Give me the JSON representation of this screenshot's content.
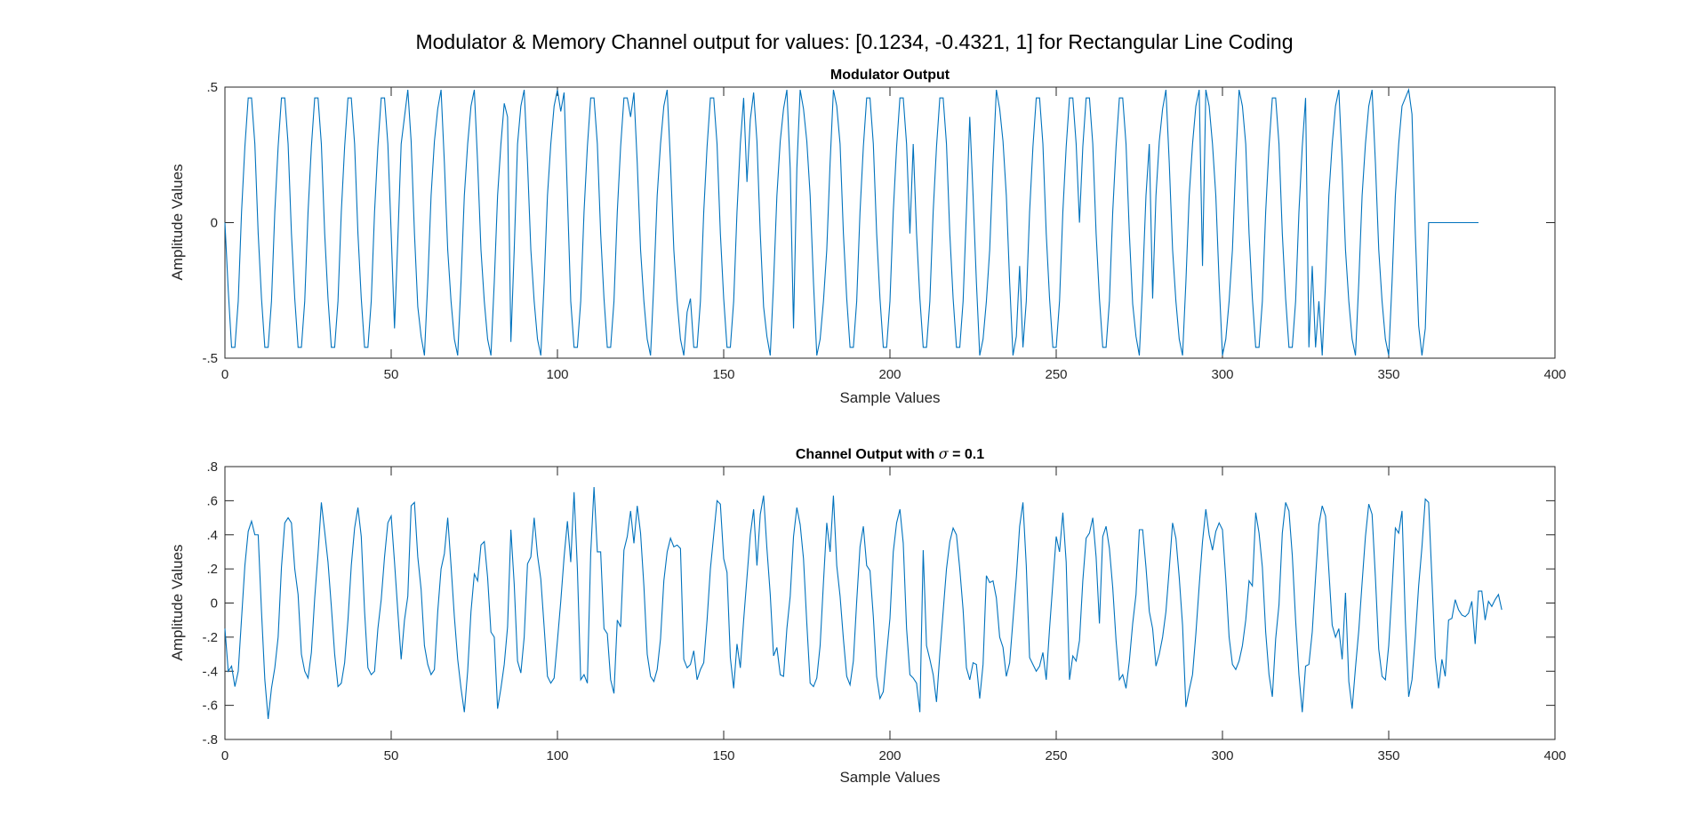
{
  "figure": {
    "title": "Modulator & Memory Channel output for values: [0.1234, -0.4321, 1] for Rectangular Line Coding"
  },
  "colors": {
    "line": "#0072BD",
    "axes": "#262626",
    "background": "#ffffff"
  },
  "chart_data": [
    {
      "type": "line",
      "title": "Modulator Output",
      "xlabel": "Sample Values",
      "ylabel": "Amplitude Values",
      "xlim": [
        0,
        400
      ],
      "ylim": [
        -0.5,
        0.5
      ],
      "xticks": [
        0,
        50,
        100,
        150,
        200,
        250,
        300,
        350,
        400
      ],
      "yticks": [
        -0.5,
        0,
        0.5
      ],
      "grid": false,
      "series": [
        {
          "x_start": 0,
          "x_step": 1,
          "values": [
            0,
            -0.25,
            -0.46,
            -0.46,
            -0.29,
            0.04,
            0.28,
            0.46,
            0.46,
            0.29,
            -0.04,
            -0.28,
            -0.46,
            -0.46,
            -0.29,
            0.04,
            0.28,
            0.46,
            0.46,
            0.29,
            -0.04,
            -0.28,
            -0.46,
            -0.46,
            -0.29,
            0.04,
            0.28,
            0.46,
            0.46,
            0.29,
            -0.04,
            -0.28,
            -0.46,
            -0.46,
            -0.29,
            0.04,
            0.28,
            0.46,
            0.46,
            0.29,
            -0.04,
            -0.28,
            -0.46,
            -0.46,
            -0.29,
            0.04,
            0.28,
            0.46,
            0.46,
            0.29,
            -0.04,
            -0.39,
            -0.06,
            0.29,
            0.39,
            0.49,
            0.3,
            -0.04,
            -0.31,
            -0.42,
            -0.49,
            -0.22,
            0.1,
            0.3,
            0.42,
            0.49,
            0.22,
            -0.1,
            -0.29,
            -0.43,
            -0.49,
            -0.22,
            0.1,
            0.29,
            0.43,
            0.49,
            0.22,
            -0.1,
            -0.29,
            -0.43,
            -0.49,
            -0.22,
            0.1,
            0.29,
            0.44,
            0.39,
            -0.44,
            -0.1,
            0.29,
            0.43,
            0.49,
            0.22,
            -0.1,
            -0.29,
            -0.43,
            -0.49,
            -0.22,
            0.1,
            0.29,
            0.43,
            0.49,
            0.41,
            0.48,
            0.1,
            -0.29,
            -0.46,
            -0.46,
            -0.29,
            0.04,
            0.28,
            0.46,
            0.46,
            0.29,
            -0.04,
            -0.28,
            -0.46,
            -0.46,
            -0.29,
            0.04,
            0.28,
            0.46,
            0.46,
            0.39,
            0.48,
            0.22,
            -0.1,
            -0.29,
            -0.43,
            -0.49,
            -0.22,
            0.1,
            0.29,
            0.43,
            0.49,
            0.22,
            -0.1,
            -0.29,
            -0.43,
            -0.49,
            -0.33,
            -0.28,
            -0.46,
            -0.46,
            -0.29,
            0.04,
            0.28,
            0.46,
            0.46,
            0.29,
            -0.04,
            -0.28,
            -0.46,
            -0.46,
            -0.29,
            0.04,
            0.29,
            0.46,
            0.15,
            0.38,
            0.48,
            0.3,
            -0.04,
            -0.31,
            -0.42,
            -0.49,
            -0.22,
            0.1,
            0.3,
            0.42,
            0.49,
            0.2,
            -0.39,
            0.2,
            0.49,
            0.42,
            0.3,
            0.1,
            -0.22,
            -0.49,
            -0.43,
            -0.29,
            -0.1,
            0.22,
            0.49,
            0.43,
            0.29,
            -0.04,
            -0.28,
            -0.46,
            -0.46,
            -0.29,
            0.04,
            0.28,
            0.46,
            0.46,
            0.29,
            -0.04,
            -0.28,
            -0.46,
            -0.46,
            -0.29,
            0.04,
            0.28,
            0.46,
            0.46,
            0.29,
            -0.04,
            0.29,
            -0.04,
            -0.28,
            -0.46,
            -0.46,
            -0.29,
            0.04,
            0.28,
            0.46,
            0.46,
            0.29,
            -0.04,
            -0.28,
            -0.46,
            -0.46,
            -0.29,
            0.04,
            0.39,
            0.1,
            -0.22,
            -0.49,
            -0.43,
            -0.29,
            -0.1,
            0.22,
            0.49,
            0.42,
            0.3,
            0.1,
            -0.22,
            -0.49,
            -0.42,
            -0.16,
            -0.46,
            -0.29,
            0.04,
            0.28,
            0.46,
            0.46,
            0.29,
            -0.04,
            -0.28,
            -0.46,
            -0.46,
            -0.29,
            0.04,
            0.28,
            0.46,
            0.46,
            0.29,
            0.0,
            0.28,
            0.46,
            0.46,
            0.29,
            -0.04,
            -0.28,
            -0.46,
            -0.46,
            -0.29,
            0.04,
            0.28,
            0.46,
            0.46,
            0.29,
            -0.04,
            -0.3,
            -0.42,
            -0.49,
            -0.22,
            0.1,
            0.29,
            -0.28,
            0.1,
            0.3,
            0.42,
            0.49,
            0.22,
            -0.1,
            -0.29,
            -0.43,
            -0.49,
            -0.22,
            0.1,
            0.29,
            0.43,
            0.49,
            -0.16,
            0.49,
            0.43,
            0.29,
            0.1,
            -0.22,
            -0.49,
            -0.43,
            -0.29,
            -0.1,
            0.22,
            0.49,
            0.43,
            0.29,
            -0.04,
            -0.28,
            -0.46,
            -0.46,
            -0.29,
            0.04,
            0.28,
            0.46,
            0.46,
            0.29,
            -0.04,
            -0.28,
            -0.46,
            -0.46,
            -0.29,
            0.04,
            0.28,
            0.46,
            -0.46,
            -0.16,
            -0.46,
            -0.29,
            -0.49,
            -0.22,
            0.1,
            0.29,
            0.43,
            0.49,
            0.22,
            -0.1,
            -0.29,
            -0.43,
            -0.49,
            -0.22,
            0.1,
            0.29,
            0.43,
            0.49,
            0.22,
            -0.1,
            -0.29,
            -0.43,
            -0.49,
            -0.22,
            0.1,
            0.29,
            0.43,
            0.46,
            0.49,
            0.4,
            -0.04,
            -0.38,
            -0.49,
            -0.39,
            0,
            0,
            0,
            0,
            0,
            0,
            0,
            0,
            0,
            0,
            0,
            0,
            0,
            0,
            0,
            0
          ]
        }
      ]
    },
    {
      "type": "line",
      "title": "Channel Output with σ = 0.1",
      "title_parts": {
        "prefix": "Channel Output with ",
        "symbol": "σ",
        "suffix": " = 0.1"
      },
      "xlabel": "Sample Values",
      "ylabel": "Amplitude Values",
      "xlim": [
        0,
        400
      ],
      "ylim": [
        -0.8,
        0.8
      ],
      "xticks": [
        0,
        50,
        100,
        150,
        200,
        250,
        300,
        350,
        400
      ],
      "yticks": [
        -0.8,
        -0.6,
        -0.4,
        -0.2,
        0,
        0.2,
        0.4,
        0.6,
        0.8
      ],
      "grid": false,
      "series": [
        {
          "x_start": 0,
          "x_step": 1,
          "values": [
            -0.15,
            -0.4,
            -0.37,
            -0.49,
            -0.4,
            -0.09,
            0.22,
            0.42,
            0.48,
            0.4,
            0.4,
            -0.05,
            -0.45,
            -0.68,
            -0.5,
            -0.38,
            -0.2,
            0.21,
            0.47,
            0.5,
            0.47,
            0.2,
            0.05,
            -0.3,
            -0.4,
            -0.44,
            -0.29,
            0.03,
            0.29,
            0.59,
            0.42,
            0.24,
            -0.02,
            -0.3,
            -0.49,
            -0.47,
            -0.35,
            -0.1,
            0.22,
            0.44,
            0.56,
            0.39,
            -0.05,
            -0.38,
            -0.42,
            -0.4,
            -0.15,
            0.02,
            0.27,
            0.47,
            0.51,
            0.24,
            -0.05,
            -0.33,
            -0.1,
            0.04,
            0.57,
            0.59,
            0.27,
            0.08,
            -0.25,
            -0.36,
            -0.42,
            -0.39,
            -0.05,
            0.2,
            0.29,
            0.5,
            0.22,
            -0.08,
            -0.33,
            -0.5,
            -0.64,
            -0.4,
            -0.05,
            0.17,
            0.13,
            0.34,
            0.36,
            0.15,
            -0.17,
            -0.2,
            -0.62,
            -0.5,
            -0.36,
            -0.14,
            0.43,
            0.11,
            -0.34,
            -0.41,
            -0.2,
            0.23,
            0.27,
            0.5,
            0.28,
            0.14,
            -0.14,
            -0.43,
            -0.47,
            -0.44,
            -0.22,
            0.01,
            0.27,
            0.48,
            0.24,
            0.65,
            0.2,
            -0.45,
            -0.42,
            -0.47,
            0.29,
            0.68,
            0.3,
            0.3,
            -0.15,
            -0.18,
            -0.45,
            -0.53,
            -0.1,
            -0.14,
            0.31,
            0.39,
            0.54,
            0.35,
            0.57,
            0.41,
            0.1,
            -0.3,
            -0.43,
            -0.46,
            -0.39,
            -0.21,
            0.13,
            0.3,
            0.38,
            0.33,
            0.34,
            0.32,
            -0.33,
            -0.38,
            -0.36,
            -0.28,
            -0.45,
            -0.39,
            -0.35,
            -0.1,
            0.2,
            0.4,
            0.6,
            0.58,
            0.26,
            0.18,
            -0.32,
            -0.5,
            -0.24,
            -0.38,
            -0.1,
            0.15,
            0.4,
            0.55,
            0.22,
            0.52,
            0.63,
            0.32,
            0.05,
            -0.31,
            -0.26,
            -0.42,
            -0.43,
            -0.15,
            0.04,
            0.39,
            0.56,
            0.46,
            0.26,
            -0.12,
            -0.47,
            -0.49,
            -0.44,
            -0.25,
            0.12,
            0.47,
            0.3,
            0.63,
            0.22,
            0.04,
            -0.21,
            -0.43,
            -0.48,
            -0.34,
            0.01,
            0.33,
            0.45,
            0.22,
            0.19,
            -0.08,
            -0.43,
            -0.56,
            -0.52,
            -0.3,
            -0.09,
            0.3,
            0.47,
            0.55,
            0.35,
            -0.15,
            -0.42,
            -0.44,
            -0.47,
            -0.64,
            0.31,
            -0.25,
            -0.33,
            -0.42,
            -0.58,
            -0.3,
            -0.05,
            0.2,
            0.36,
            0.44,
            0.4,
            0.2,
            -0.04,
            -0.38,
            -0.45,
            -0.35,
            -0.36,
            -0.56,
            -0.36,
            0.16,
            0.12,
            0.13,
            0.03,
            -0.2,
            -0.26,
            -0.43,
            -0.35,
            -0.1,
            0.15,
            0.45,
            0.59,
            0.22,
            -0.32,
            -0.36,
            -0.4,
            -0.37,
            -0.29,
            -0.45,
            -0.15,
            0.12,
            0.39,
            0.3,
            0.53,
            0.24,
            -0.45,
            -0.31,
            -0.34,
            -0.22,
            0.13,
            0.38,
            0.41,
            0.5,
            0.27,
            -0.12,
            0.39,
            0.45,
            0.32,
            0.09,
            -0.22,
            -0.45,
            -0.42,
            -0.5,
            -0.34,
            -0.12,
            0.05,
            0.43,
            0.43,
            0.21,
            -0.05,
            -0.15,
            -0.37,
            -0.3,
            -0.2,
            -0.05,
            0.2,
            0.47,
            0.38,
            0.15,
            -0.13,
            -0.61,
            -0.51,
            -0.42,
            -0.18,
            0.1,
            0.36,
            0.55,
            0.4,
            0.31,
            0.42,
            0.47,
            0.43,
            0.14,
            -0.2,
            -0.36,
            -0.39,
            -0.34,
            -0.25,
            -0.1,
            0.13,
            0.1,
            0.53,
            0.41,
            0.21,
            -0.17,
            -0.42,
            -0.55,
            -0.21,
            -0.01,
            0.41,
            0.59,
            0.54,
            0.28,
            -0.1,
            -0.42,
            -0.64,
            -0.37,
            -0.36,
            -0.17,
            0.15,
            0.46,
            0.57,
            0.51,
            0.19,
            -0.13,
            -0.2,
            -0.15,
            -0.33,
            0.06,
            -0.46,
            -0.62,
            -0.38,
            -0.16,
            0.12,
            0.39,
            0.58,
            0.52,
            0.15,
            -0.27,
            -0.43,
            -0.45,
            -0.25,
            0.08,
            0.44,
            0.41,
            0.54,
            -0.1,
            -0.55,
            -0.45,
            -0.2,
            0.1,
            0.33,
            0.61,
            0.59,
            0.14,
            -0.32,
            -0.5,
            -0.33,
            -0.43,
            -0.1,
            -0.09,
            0.02,
            -0.04,
            -0.07,
            -0.08,
            -0.06,
            0.01,
            -0.24,
            0.07,
            0.07,
            -0.1,
            0.01,
            -0.02,
            0.02,
            0.05,
            -0.04
          ]
        }
      ]
    }
  ]
}
